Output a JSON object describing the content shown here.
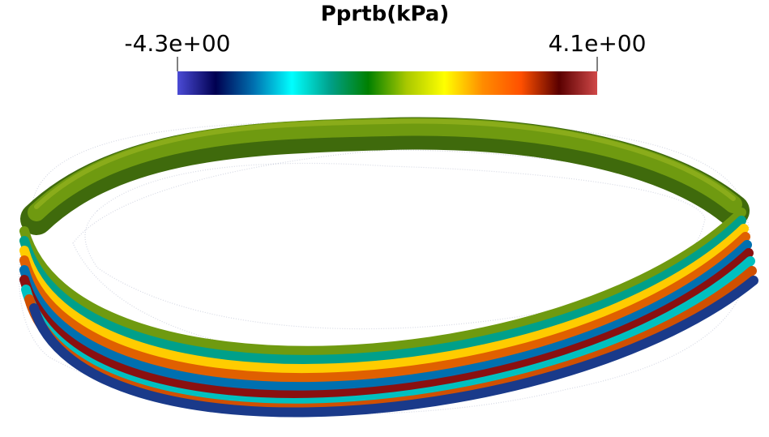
{
  "colorbar": {
    "title": "Pprtb(kPa)",
    "range": [
      {
        "value": -4.3,
        "label": "-4.3e+00"
      },
      {
        "value": 4.1,
        "label": "4.1e+00"
      }
    ],
    "colors": [
      "#4b4bd6",
      "#000050",
      "#0070b0",
      "#00ffff",
      "#00a08a",
      "#008000",
      "#a8c800",
      "#ffff00",
      "#ff8c00",
      "#ff5000",
      "#5a0000",
      "#d04848"
    ]
  }
}
